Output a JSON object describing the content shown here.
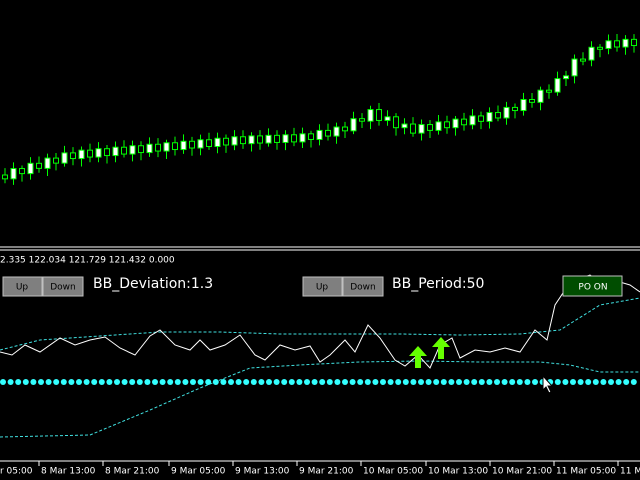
{
  "indicator_values": "2.335 122.034 121.729 121.432 0.000",
  "controls": [
    {
      "up": "Up",
      "down": "Down",
      "label": "BB_Deviation:1.3"
    },
    {
      "up": "Up",
      "down": "Down",
      "label": "BB_Period:50"
    }
  ],
  "status_button": "PO ON",
  "time_axis": [
    "r 05:00",
    "8 Mar 13:00",
    "8 Mar 21:00",
    "9 Mar 05:00",
    "9 Mar 13:00",
    "9 Mar 21:00",
    "10 Mar 05:00",
    "10 Mar 13:00",
    "10 Mar 21:00",
    "11 Mar 05:00",
    "11 Ma"
  ]
}
